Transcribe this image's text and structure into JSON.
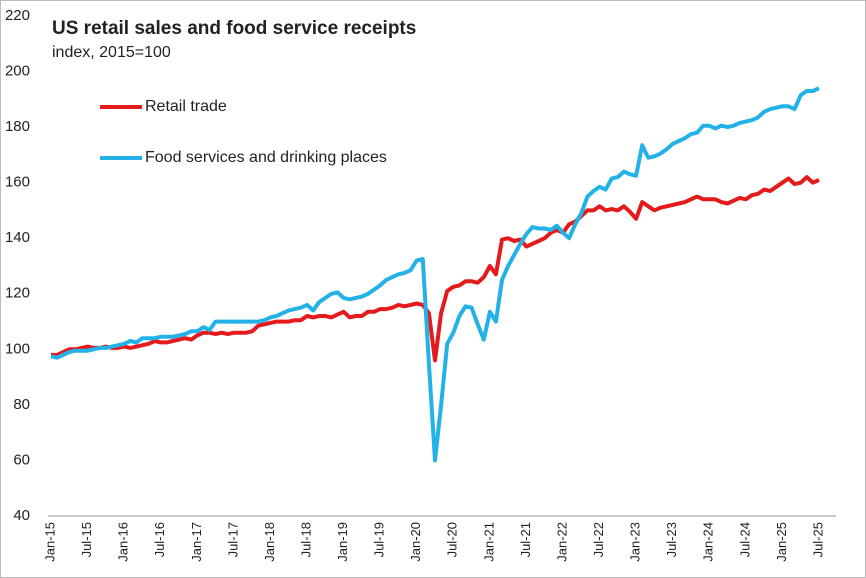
{
  "chart_data": {
    "type": "line",
    "title": "US retail sales and food service receipts",
    "subtitle": "index, 2015=100",
    "categories": [
      "Jan-15",
      null,
      null,
      null,
      null,
      null,
      "Jul-15",
      null,
      null,
      null,
      null,
      null,
      "Jan-16",
      null,
      null,
      null,
      null,
      null,
      "Jul-16",
      null,
      null,
      null,
      null,
      null,
      "Jan-17",
      null,
      null,
      null,
      null,
      null,
      "Jul-17",
      null,
      null,
      null,
      null,
      null,
      "Jan-18",
      null,
      null,
      null,
      null,
      null,
      "Jul-18",
      null,
      null,
      null,
      null,
      null,
      "Jan-19",
      null,
      null,
      null,
      null,
      null,
      "Jul-19",
      null,
      null,
      null,
      null,
      null,
      "Jan-20",
      null,
      null,
      null,
      null,
      null,
      "Jul-20",
      null,
      null,
      null,
      null,
      null,
      "Jan-21",
      null,
      null,
      null,
      null,
      null,
      "Jul-21",
      null,
      null,
      null,
      null,
      null,
      "Jan-22",
      null,
      null,
      null,
      null,
      null,
      "Jul-22",
      null,
      null,
      null,
      null,
      null,
      "Jan-23",
      null,
      null,
      null,
      null,
      null,
      "Jul-23",
      null,
      null,
      null,
      null,
      null,
      "Jan-24",
      null,
      null,
      null,
      null,
      null,
      "Jul-24",
      null,
      null,
      null,
      null,
      null,
      "Jan-25",
      null,
      null,
      null,
      null,
      null,
      "Jul-25"
    ],
    "series": [
      {
        "name": "Retail trade",
        "color": "#e41a1c",
        "values": [
          98,
          98,
          99,
          100,
          100,
          100.5,
          101,
          100.5,
          100.5,
          101,
          100.5,
          100.5,
          101,
          100.5,
          101,
          101.5,
          102,
          103,
          102.5,
          102.5,
          103,
          103.5,
          104,
          103.5,
          105,
          106,
          106,
          105.5,
          106,
          105.5,
          106,
          106,
          106,
          106.5,
          108.5,
          109,
          109.5,
          110,
          110,
          110,
          110.5,
          110.5,
          112,
          111.5,
          112,
          112,
          111.5,
          112.5,
          113.5,
          111.5,
          112,
          112,
          113.5,
          113.5,
          114.5,
          114.5,
          115,
          116,
          115.5,
          116,
          116.5,
          116,
          113,
          96,
          113,
          121,
          122.5,
          123,
          124.5,
          124.5,
          124,
          126,
          130,
          127,
          139.5,
          140,
          139,
          139.5,
          137,
          138,
          139,
          140,
          142,
          143,
          142,
          145,
          146,
          148,
          150,
          150,
          151.5,
          150,
          150.5,
          150,
          151.5,
          149.5,
          147,
          153,
          151.5,
          150,
          151,
          151.5,
          152,
          152.5,
          153,
          154,
          155,
          154,
          154,
          154,
          153,
          152.5,
          153.5,
          154.5,
          154,
          155.5,
          156,
          157.5,
          157,
          158.5,
          160,
          161.5,
          159.5,
          160,
          162,
          160,
          161
        ]
      },
      {
        "name": "Food services and drinking places",
        "color": "#22b2e8",
        "values": [
          97.5,
          97,
          98,
          99,
          99.5,
          99.5,
          99.5,
          100,
          100.5,
          100.5,
          101,
          101.5,
          102,
          103,
          102.5,
          104,
          104,
          104,
          104.5,
          104.5,
          104.5,
          105,
          105.5,
          106.5,
          106.5,
          108,
          107,
          110,
          110,
          110,
          110,
          110,
          110,
          110,
          110,
          110.5,
          111.5,
          112,
          113,
          114,
          114.5,
          115,
          116,
          114,
          117,
          118.5,
          120,
          120.5,
          118.5,
          118,
          118.5,
          119,
          120,
          121.5,
          123,
          125,
          126,
          127,
          127.5,
          128.5,
          132,
          132.5,
          95,
          60,
          80,
          102,
          106,
          112,
          115.5,
          115,
          109,
          103.5,
          113.5,
          110,
          125,
          130,
          134,
          138,
          141.5,
          144,
          143.5,
          143.5,
          143,
          144.5,
          142,
          140,
          145,
          149,
          155,
          157,
          158.5,
          157.5,
          161.5,
          162,
          164,
          163,
          162.5,
          173.5,
          169,
          169.5,
          170.5,
          172,
          174,
          175,
          176,
          177.5,
          178,
          180.5,
          180.5,
          179.5,
          180.5,
          180,
          180.5,
          181.5,
          182,
          182.5,
          183.5,
          185.5,
          186.5,
          187,
          187.5,
          187.5,
          186.5,
          191.5,
          193,
          193,
          194
        ]
      }
    ],
    "ylim": [
      40,
      220
    ],
    "yticks": [
      40,
      60,
      80,
      100,
      120,
      140,
      160,
      180,
      200,
      220
    ],
    "grid": false,
    "legend": "upper left"
  }
}
